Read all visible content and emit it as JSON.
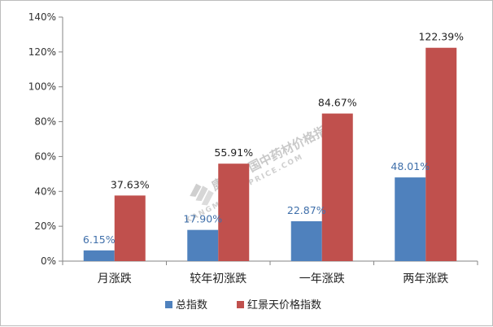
{
  "chart_data": {
    "type": "bar",
    "categories": [
      "月涨跌",
      "较年初涨跌",
      "一年涨跌",
      "两年涨跌"
    ],
    "series": [
      {
        "name": "总指数",
        "color": "#4f81bd",
        "values": [
          6.15,
          17.9,
          22.87,
          48.01
        ],
        "labels": [
          "6.15%",
          "17.90%",
          "22.87%",
          "48.01%"
        ],
        "label_color": "#3f6faa"
      },
      {
        "name": "红景天价格指数",
        "color": "#c0504d",
        "values": [
          37.63,
          55.91,
          84.67,
          122.39
        ],
        "labels": [
          "37.63%",
          "55.91%",
          "84.67%",
          "122.39%"
        ],
        "label_color": "#222222"
      }
    ],
    "ylim": [
      0,
      140
    ],
    "yticks": [
      0,
      20,
      40,
      60,
      80,
      100,
      120,
      140
    ],
    "ytick_labels": [
      "0%",
      "20%",
      "40%",
      "60%",
      "80%",
      "100%",
      "120%",
      "140%"
    ],
    "grid": false,
    "legend_placement": "bottom",
    "title": "",
    "xlabel": "",
    "ylabel": ""
  },
  "watermark": {
    "text": "康美·中国中药材价格指数",
    "sub": "CNKMPRICE.COM",
    "brand": "KANGMEI"
  }
}
